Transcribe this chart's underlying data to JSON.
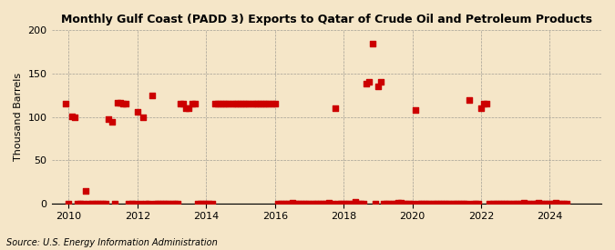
{
  "title": "Monthly Gulf Coast (PADD 3) Exports to Qatar of Crude Oil and Petroleum Products",
  "ylabel": "Thousand Barrels",
  "source": "Source: U.S. Energy Information Administration",
  "background_color": "#f5e6c8",
  "marker_color": "#cc0000",
  "marker_size": 16,
  "ylim": [
    0,
    200
  ],
  "yticks": [
    0,
    50,
    100,
    150,
    200
  ],
  "xlim_start": 2009.5,
  "xlim_end": 2025.5,
  "xticks": [
    2010,
    2012,
    2014,
    2016,
    2018,
    2020,
    2022,
    2024
  ],
  "data_x": [
    2009.917,
    2010.0,
    2010.083,
    2010.167,
    2010.25,
    2010.333,
    2010.417,
    2010.5,
    2010.583,
    2010.667,
    2010.75,
    2010.833,
    2010.917,
    2011.0,
    2011.083,
    2011.167,
    2011.25,
    2011.333,
    2011.417,
    2011.5,
    2011.583,
    2011.667,
    2011.75,
    2011.833,
    2011.917,
    2012.0,
    2012.083,
    2012.167,
    2012.25,
    2012.333,
    2012.417,
    2012.5,
    2012.583,
    2012.667,
    2012.75,
    2012.833,
    2012.917,
    2013.0,
    2013.083,
    2013.167,
    2013.25,
    2013.333,
    2013.417,
    2013.5,
    2013.583,
    2013.667,
    2013.75,
    2013.833,
    2013.917,
    2014.0,
    2014.083,
    2014.167,
    2014.25,
    2014.333,
    2014.417,
    2014.5,
    2014.583,
    2014.667,
    2014.75,
    2014.833,
    2014.917,
    2015.0,
    2015.083,
    2015.167,
    2015.25,
    2015.333,
    2015.417,
    2015.5,
    2015.583,
    2015.667,
    2015.75,
    2015.833,
    2015.917,
    2016.0,
    2016.083,
    2016.167,
    2016.25,
    2016.333,
    2016.417,
    2016.5,
    2016.583,
    2016.667,
    2016.75,
    2016.833,
    2016.917,
    2017.0,
    2017.083,
    2017.167,
    2017.25,
    2017.333,
    2017.417,
    2017.5,
    2017.583,
    2017.667,
    2017.75,
    2017.833,
    2017.917,
    2018.0,
    2018.083,
    2018.167,
    2018.25,
    2018.333,
    2018.417,
    2018.5,
    2018.583,
    2018.667,
    2018.75,
    2018.833,
    2018.917,
    2019.0,
    2019.083,
    2019.167,
    2019.25,
    2019.333,
    2019.417,
    2019.5,
    2019.583,
    2019.667,
    2019.75,
    2019.833,
    2019.917,
    2020.0,
    2020.083,
    2020.167,
    2020.25,
    2020.333,
    2020.417,
    2020.5,
    2020.583,
    2020.667,
    2020.75,
    2020.833,
    2020.917,
    2021.0,
    2021.083,
    2021.167,
    2021.25,
    2021.333,
    2021.417,
    2021.5,
    2021.583,
    2021.667,
    2021.75,
    2021.833,
    2021.917,
    2022.0,
    2022.083,
    2022.167,
    2022.25,
    2022.333,
    2022.417,
    2022.5,
    2022.583,
    2022.667,
    2022.75,
    2022.833,
    2022.917,
    2023.0,
    2023.083,
    2023.167,
    2023.25,
    2023.333,
    2023.417,
    2023.5,
    2023.583,
    2023.667,
    2023.75,
    2023.833,
    2023.917,
    2024.0,
    2024.083,
    2024.167,
    2024.25,
    2024.333,
    2024.417,
    2024.5
  ],
  "data_y": [
    115,
    0,
    101,
    100,
    0,
    0,
    0,
    14,
    0,
    0,
    0,
    0,
    0,
    0,
    0,
    97,
    94,
    0,
    116,
    116,
    115,
    115,
    0,
    0,
    0,
    106,
    0,
    100,
    0,
    0,
    125,
    0,
    0,
    0,
    0,
    0,
    0,
    0,
    0,
    0,
    115,
    115,
    110,
    110,
    115,
    115,
    0,
    0,
    0,
    0,
    0,
    0,
    115,
    115,
    115,
    115,
    115,
    115,
    115,
    115,
    115,
    115,
    115,
    115,
    115,
    115,
    115,
    115,
    115,
    115,
    115,
    115,
    115,
    115,
    0,
    0,
    0,
    0,
    0,
    1,
    0,
    0,
    0,
    0,
    0,
    0,
    0,
    0,
    0,
    0,
    0,
    0,
    1,
    0,
    110,
    0,
    0,
    0,
    0,
    0,
    0,
    2,
    0,
    0,
    0,
    138,
    140,
    185,
    0,
    135,
    141,
    0,
    0,
    0,
    0,
    0,
    1,
    1,
    0,
    0,
    0,
    0,
    108,
    0,
    0,
    0,
    0,
    0,
    0,
    0,
    0,
    0,
    0,
    0,
    0,
    0,
    0,
    0,
    0,
    0,
    0,
    120,
    0,
    0,
    0,
    110,
    115,
    115,
    0,
    0,
    0,
    0,
    0,
    0,
    0,
    0,
    0,
    0,
    0,
    0,
    1,
    0,
    0,
    0,
    0,
    1,
    0,
    0,
    0,
    0,
    0,
    1,
    0,
    0,
    0,
    0
  ]
}
